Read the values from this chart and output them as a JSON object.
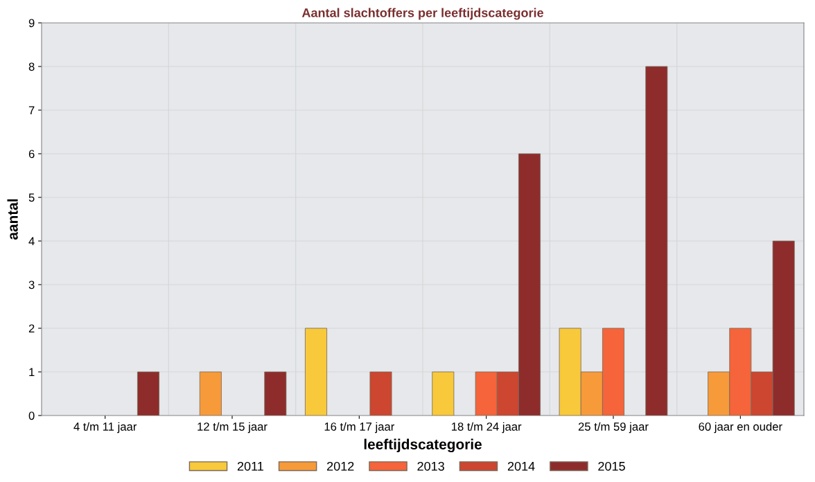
{
  "chart_data": {
    "type": "bar",
    "title": "Aantal slachtoffers per leeftijdscategorie",
    "xlabel": "leeftijdscategorie",
    "ylabel": "aantal",
    "categories": [
      "4 t/m 11 jaar",
      "12 t/m 15 jaar",
      "16 t/m 17 jaar",
      "18 t/m 24 jaar",
      "25 t/m 59 jaar",
      "60 jaar en ouder"
    ],
    "series": [
      {
        "name": "2011",
        "color": "#f8c93a",
        "values": [
          null,
          null,
          2,
          1,
          2,
          null
        ]
      },
      {
        "name": "2012",
        "color": "#f79a3a",
        "values": [
          null,
          1,
          null,
          null,
          1,
          1
        ]
      },
      {
        "name": "2013",
        "color": "#f5643a",
        "values": [
          null,
          null,
          null,
          1,
          2,
          2
        ]
      },
      {
        "name": "2014",
        "color": "#cc4630",
        "values": [
          null,
          null,
          1,
          1,
          null,
          1
        ]
      },
      {
        "name": "2015",
        "color": "#8e2c2c",
        "values": [
          1,
          1,
          null,
          6,
          8,
          4
        ]
      }
    ],
    "ylim": [
      0,
      9
    ],
    "yticks": [
      0,
      1,
      2,
      3,
      4,
      5,
      6,
      7,
      8,
      9
    ],
    "grid": true,
    "legend": "bottom"
  }
}
